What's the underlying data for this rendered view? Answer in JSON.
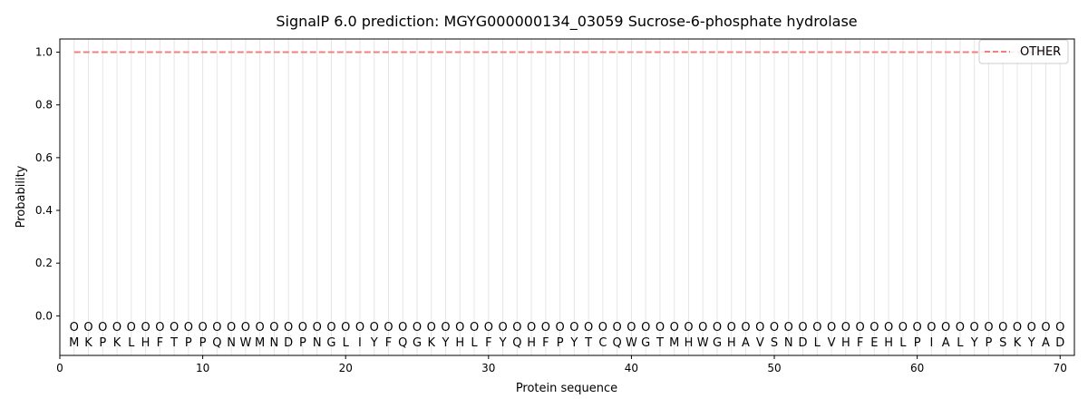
{
  "chart_data": {
    "type": "line",
    "title": "SignalP 6.0 prediction: MGYG000000134_03059 Sucrose-6-phosphate hydrolase",
    "xlabel": "Protein sequence",
    "ylabel": "Probability",
    "xlim": [
      0,
      71
    ],
    "ylim": [
      -0.15,
      1.05
    ],
    "xticks": [
      0,
      10,
      20,
      30,
      40,
      50,
      60,
      70
    ],
    "yticks": [
      0.0,
      0.2,
      0.4,
      0.6,
      0.8,
      1.0
    ],
    "ytick_labels": [
      "0.0",
      "0.2",
      "0.4",
      "0.6",
      "0.8",
      "1.0"
    ],
    "grid": "vertical lines at each residue",
    "legend_position": "top-right",
    "series": [
      {
        "name": "OTHER",
        "style": "dashed",
        "color": "#f08080",
        "x_start": 1,
        "x_end": 70,
        "value": 1.0
      }
    ],
    "sequence": "MKPKLHFTPPQNWMNDPNGLIYFQGKYHLFYQHFPYTCQWGTMHWGHAVSNDLVHFEHLPIALYPSKYAD",
    "marker_label": "O",
    "marker_y": -0.04
  }
}
